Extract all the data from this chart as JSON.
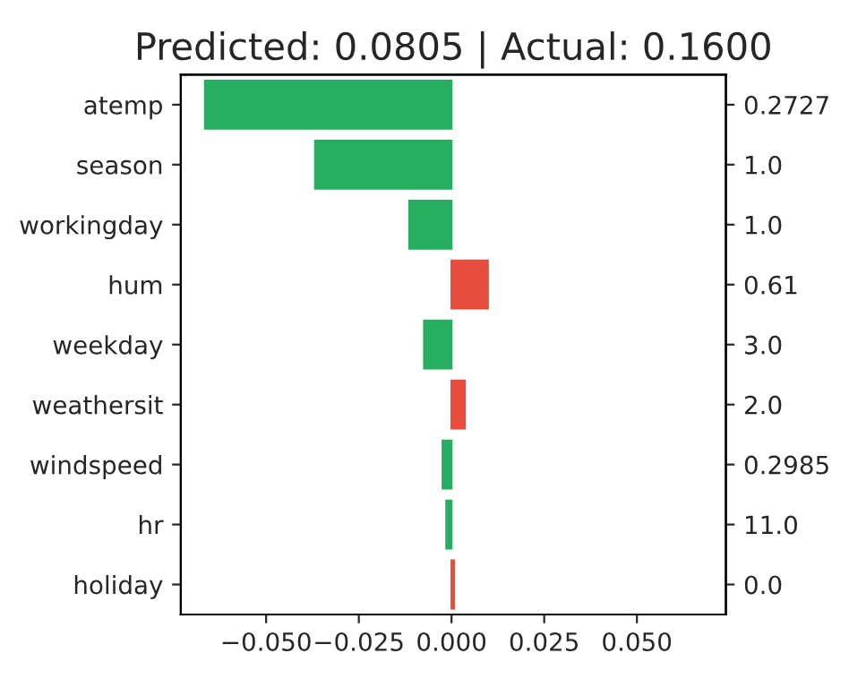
{
  "chart_data": {
    "type": "bar",
    "orientation": "horizontal",
    "title": "Predicted: 0.0805 | Actual: 0.1600",
    "categories": [
      "atemp",
      "season",
      "workingday",
      "hum",
      "weekday",
      "weathersit",
      "windspeed",
      "hr",
      "holiday"
    ],
    "y2_categories": [
      "0.2727",
      "1.0",
      "1.0",
      "0.61",
      "3.0",
      "2.0",
      "0.2985",
      "11.0",
      "0.0"
    ],
    "values": [
      -0.0665,
      -0.0368,
      -0.0114,
      0.0098,
      -0.0074,
      0.0036,
      -0.0024,
      -0.0014,
      0.0007
    ],
    "colors": [
      "#27ae60",
      "#27ae60",
      "#27ae60",
      "#e74c3c",
      "#27ae60",
      "#e74c3c",
      "#27ae60",
      "#27ae60",
      "#e74c3c"
    ],
    "xlim": [
      -0.073,
      0.074
    ],
    "xticks": [
      {
        "value": -0.05,
        "label": "−0.050"
      },
      {
        "value": -0.025,
        "label": "−0.025"
      },
      {
        "value": 0,
        "label": "0.000"
      },
      {
        "value": 0.025,
        "label": "0.025"
      },
      {
        "value": 0.05,
        "label": "0.050"
      }
    ],
    "grid": false,
    "legend": false
  }
}
